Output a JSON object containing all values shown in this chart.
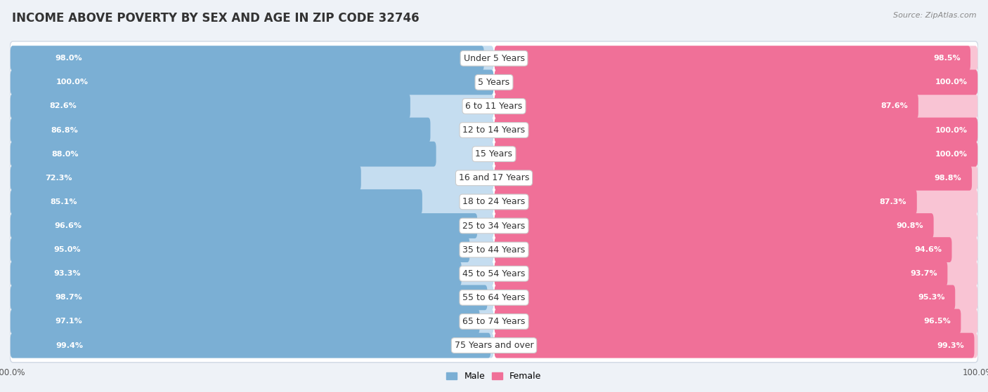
{
  "title": "INCOME ABOVE POVERTY BY SEX AND AGE IN ZIP CODE 32746",
  "source": "Source: ZipAtlas.com",
  "categories": [
    "Under 5 Years",
    "5 Years",
    "6 to 11 Years",
    "12 to 14 Years",
    "15 Years",
    "16 and 17 Years",
    "18 to 24 Years",
    "25 to 34 Years",
    "35 to 44 Years",
    "45 to 54 Years",
    "55 to 64 Years",
    "65 to 74 Years",
    "75 Years and over"
  ],
  "male_values": [
    98.0,
    100.0,
    82.6,
    86.8,
    88.0,
    72.3,
    85.1,
    96.6,
    95.0,
    93.3,
    98.7,
    97.1,
    99.4
  ],
  "female_values": [
    98.5,
    100.0,
    87.6,
    100.0,
    100.0,
    98.8,
    87.3,
    90.8,
    94.6,
    93.7,
    95.3,
    96.5,
    99.3
  ],
  "male_color": "#7bafd4",
  "male_color_light": "#c5ddf0",
  "female_color": "#f07098",
  "female_color_light": "#f9c4d4",
  "male_label": "Male",
  "female_label": "Female",
  "background_color": "#eef2f7",
  "row_bg_color": "#ffffff",
  "row_border_color": "#d0d8e4",
  "title_fontsize": 12,
  "label_fontsize": 9,
  "value_fontsize": 8,
  "legend_fontsize": 9
}
